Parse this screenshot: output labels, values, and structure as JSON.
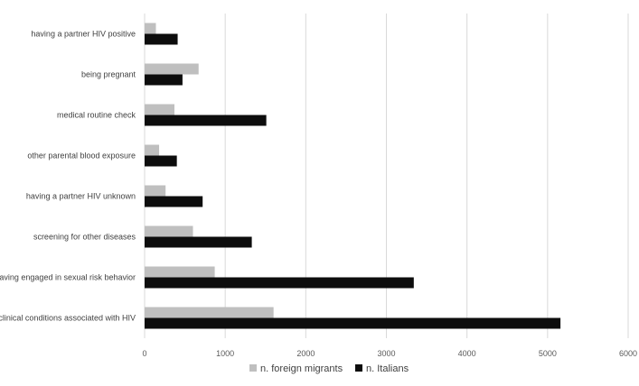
{
  "chart_data": {
    "type": "bar",
    "orientation": "horizontal",
    "categories": [
      "having a partner HIV positive",
      "being pregnant",
      "medical routine check",
      "other parental blood exposure",
      "having a partner HIV unknown",
      "screening for other diseases",
      "having engaged in sexual risk behavior",
      "clinical conditions associated with HIV"
    ],
    "series": [
      {
        "name": "n. foreign migrants",
        "color": "#bfbfbf",
        "values": [
          140,
          670,
          370,
          180,
          260,
          600,
          870,
          1600
        ]
      },
      {
        "name": "n. Italians",
        "color": "#0d0d0d",
        "values": [
          410,
          470,
          1510,
          400,
          720,
          1330,
          3340,
          5160
        ]
      }
    ],
    "xlim": [
      0,
      6000
    ],
    "xticks": [
      0,
      1000,
      2000,
      3000,
      4000,
      5000,
      6000
    ],
    "grid": true,
    "legend_position": "bottom"
  }
}
